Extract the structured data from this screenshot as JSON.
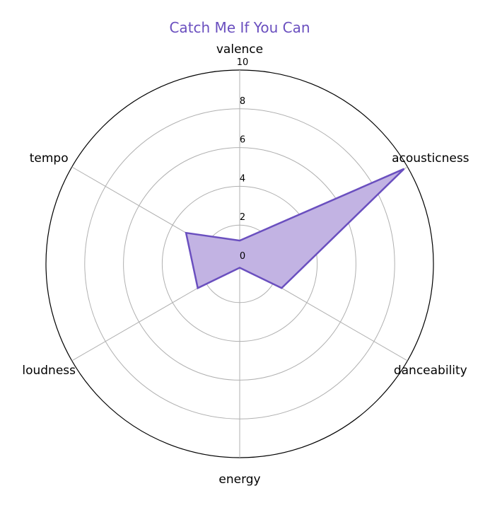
{
  "chart_data": {
    "type": "radar",
    "title": "Catch Me If You Can",
    "categories": [
      "valence",
      "acousticness",
      "danceability",
      "energy",
      "loudness",
      "tempo"
    ],
    "series": [
      {
        "values": [
          1.2,
          9.8,
          2.5,
          0.2,
          2.5,
          3.2
        ]
      }
    ],
    "rlim": [
      0,
      10
    ],
    "r_ticks": [
      "0",
      "2",
      "4",
      "6",
      "8",
      "10"
    ],
    "grid": true,
    "colors": {
      "title": "#6a4fbf",
      "line": "#6a4fbf",
      "fill": "#c2b3e3"
    }
  }
}
